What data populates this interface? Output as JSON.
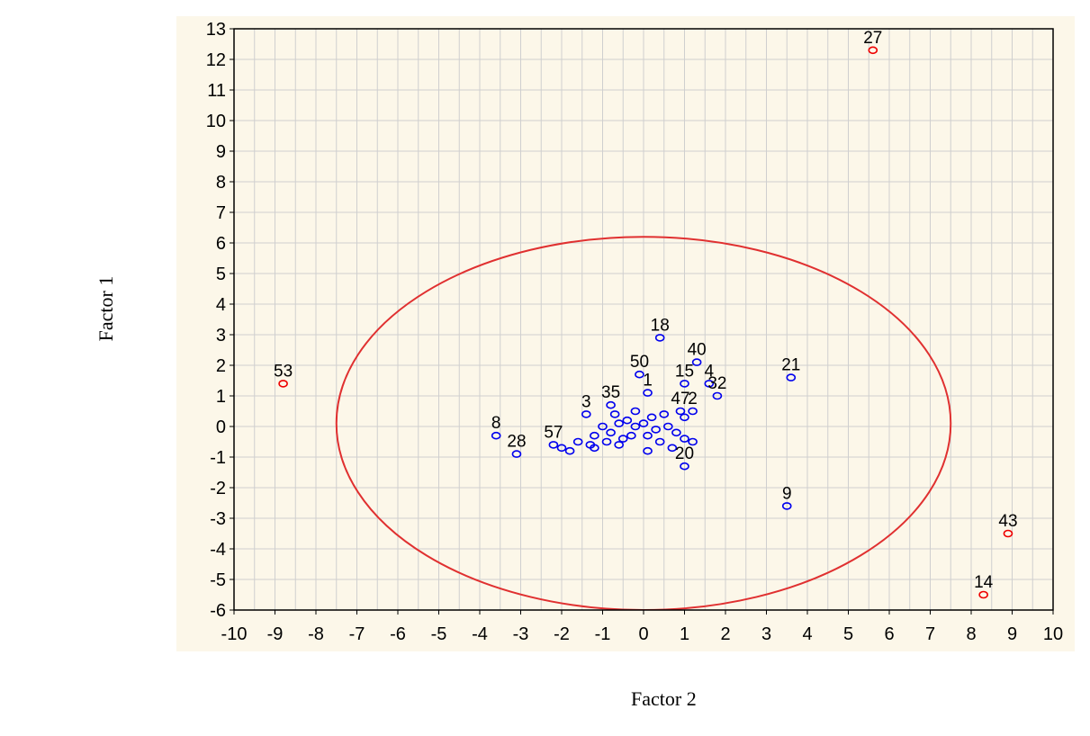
{
  "chart_data": {
    "type": "scatter",
    "title": "",
    "xlabel": "Factor 2",
    "ylabel": "Factor 1",
    "xlim": [
      -10,
      10
    ],
    "ylim": [
      -6,
      13
    ],
    "xticks": [
      "-10",
      "-9",
      "-8",
      "-7",
      "-6",
      "-5",
      "-4",
      "-3",
      "-2",
      "-1",
      "0",
      "1",
      "2",
      "3",
      "4",
      "5",
      "6",
      "7",
      "8",
      "9",
      "10"
    ],
    "yticks": [
      "13",
      "12",
      "11",
      "10",
      "9",
      "8",
      "7",
      "6",
      "5",
      "4",
      "3",
      "2",
      "1",
      "0",
      "-1",
      "-2",
      "-3",
      "-4",
      "-5",
      "-6"
    ],
    "grid": true,
    "colors": {
      "inlier": "#0000ee",
      "outlier": "#ee0000",
      "ellipse": "#e03030",
      "grid": "#cfcfcf",
      "panel": "#fcf7e9"
    },
    "ellipse": {
      "center": [
        0,
        0.1
      ],
      "semi_axis_x": 7.5,
      "semi_axis_y": 6.1
    },
    "outliers": [
      {
        "label": "27",
        "x": 5.6,
        "y": 12.3
      },
      {
        "label": "53",
        "x": -8.8,
        "y": 1.4
      },
      {
        "label": "43",
        "x": 8.9,
        "y": -3.5
      },
      {
        "label": "14",
        "x": 8.3,
        "y": -5.5
      }
    ],
    "labeled_points": [
      {
        "label": "18",
        "x": 0.4,
        "y": 2.9
      },
      {
        "label": "40",
        "x": 1.3,
        "y": 2.1
      },
      {
        "label": "50",
        "x": -0.1,
        "y": 1.7
      },
      {
        "label": "1",
        "x": 0.1,
        "y": 1.1
      },
      {
        "label": "15",
        "x": 1.0,
        "y": 1.4
      },
      {
        "label": "4",
        "x": 1.6,
        "y": 1.4
      },
      {
        "label": "32",
        "x": 1.8,
        "y": 1.0
      },
      {
        "label": "21",
        "x": 3.6,
        "y": 1.6
      },
      {
        "label": "35",
        "x": -0.8,
        "y": 0.7
      },
      {
        "label": "3",
        "x": -1.4,
        "y": 0.4
      },
      {
        "label": "47",
        "x": 0.9,
        "y": 0.5
      },
      {
        "label": "2",
        "x": 1.2,
        "y": 0.5
      },
      {
        "label": "8",
        "x": -3.6,
        "y": -0.3
      },
      {
        "label": "28",
        "x": -3.1,
        "y": -0.9
      },
      {
        "label": "57",
        "x": -2.2,
        "y": -0.6
      },
      {
        "label": "20",
        "x": 1.0,
        "y": -1.3
      },
      {
        "label": "9",
        "x": 3.5,
        "y": -2.6
      }
    ],
    "cluster_points": [
      [
        -0.6,
        0.1
      ],
      [
        -0.4,
        0.2
      ],
      [
        -0.2,
        0.0
      ],
      [
        0.0,
        0.1
      ],
      [
        -0.8,
        -0.2
      ],
      [
        -1.0,
        0.0
      ],
      [
        -0.5,
        -0.4
      ],
      [
        -0.3,
        -0.3
      ],
      [
        0.1,
        -0.3
      ],
      [
        0.3,
        -0.1
      ],
      [
        0.6,
        0.0
      ],
      [
        0.8,
        -0.2
      ],
      [
        1.0,
        -0.4
      ],
      [
        1.2,
        -0.5
      ],
      [
        0.7,
        -0.7
      ],
      [
        0.1,
        -0.8
      ],
      [
        -1.2,
        -0.3
      ],
      [
        -1.3,
        -0.6
      ],
      [
        -1.6,
        -0.5
      ],
      [
        -1.8,
        -0.8
      ],
      [
        -2.0,
        -0.7
      ],
      [
        -1.2,
        -0.7
      ],
      [
        -0.9,
        -0.5
      ],
      [
        -0.7,
        0.4
      ],
      [
        0.2,
        0.3
      ],
      [
        -0.2,
        0.5
      ],
      [
        0.5,
        0.4
      ],
      [
        1.0,
        0.3
      ],
      [
        0.4,
        -0.5
      ],
      [
        -0.6,
        -0.6
      ]
    ]
  }
}
